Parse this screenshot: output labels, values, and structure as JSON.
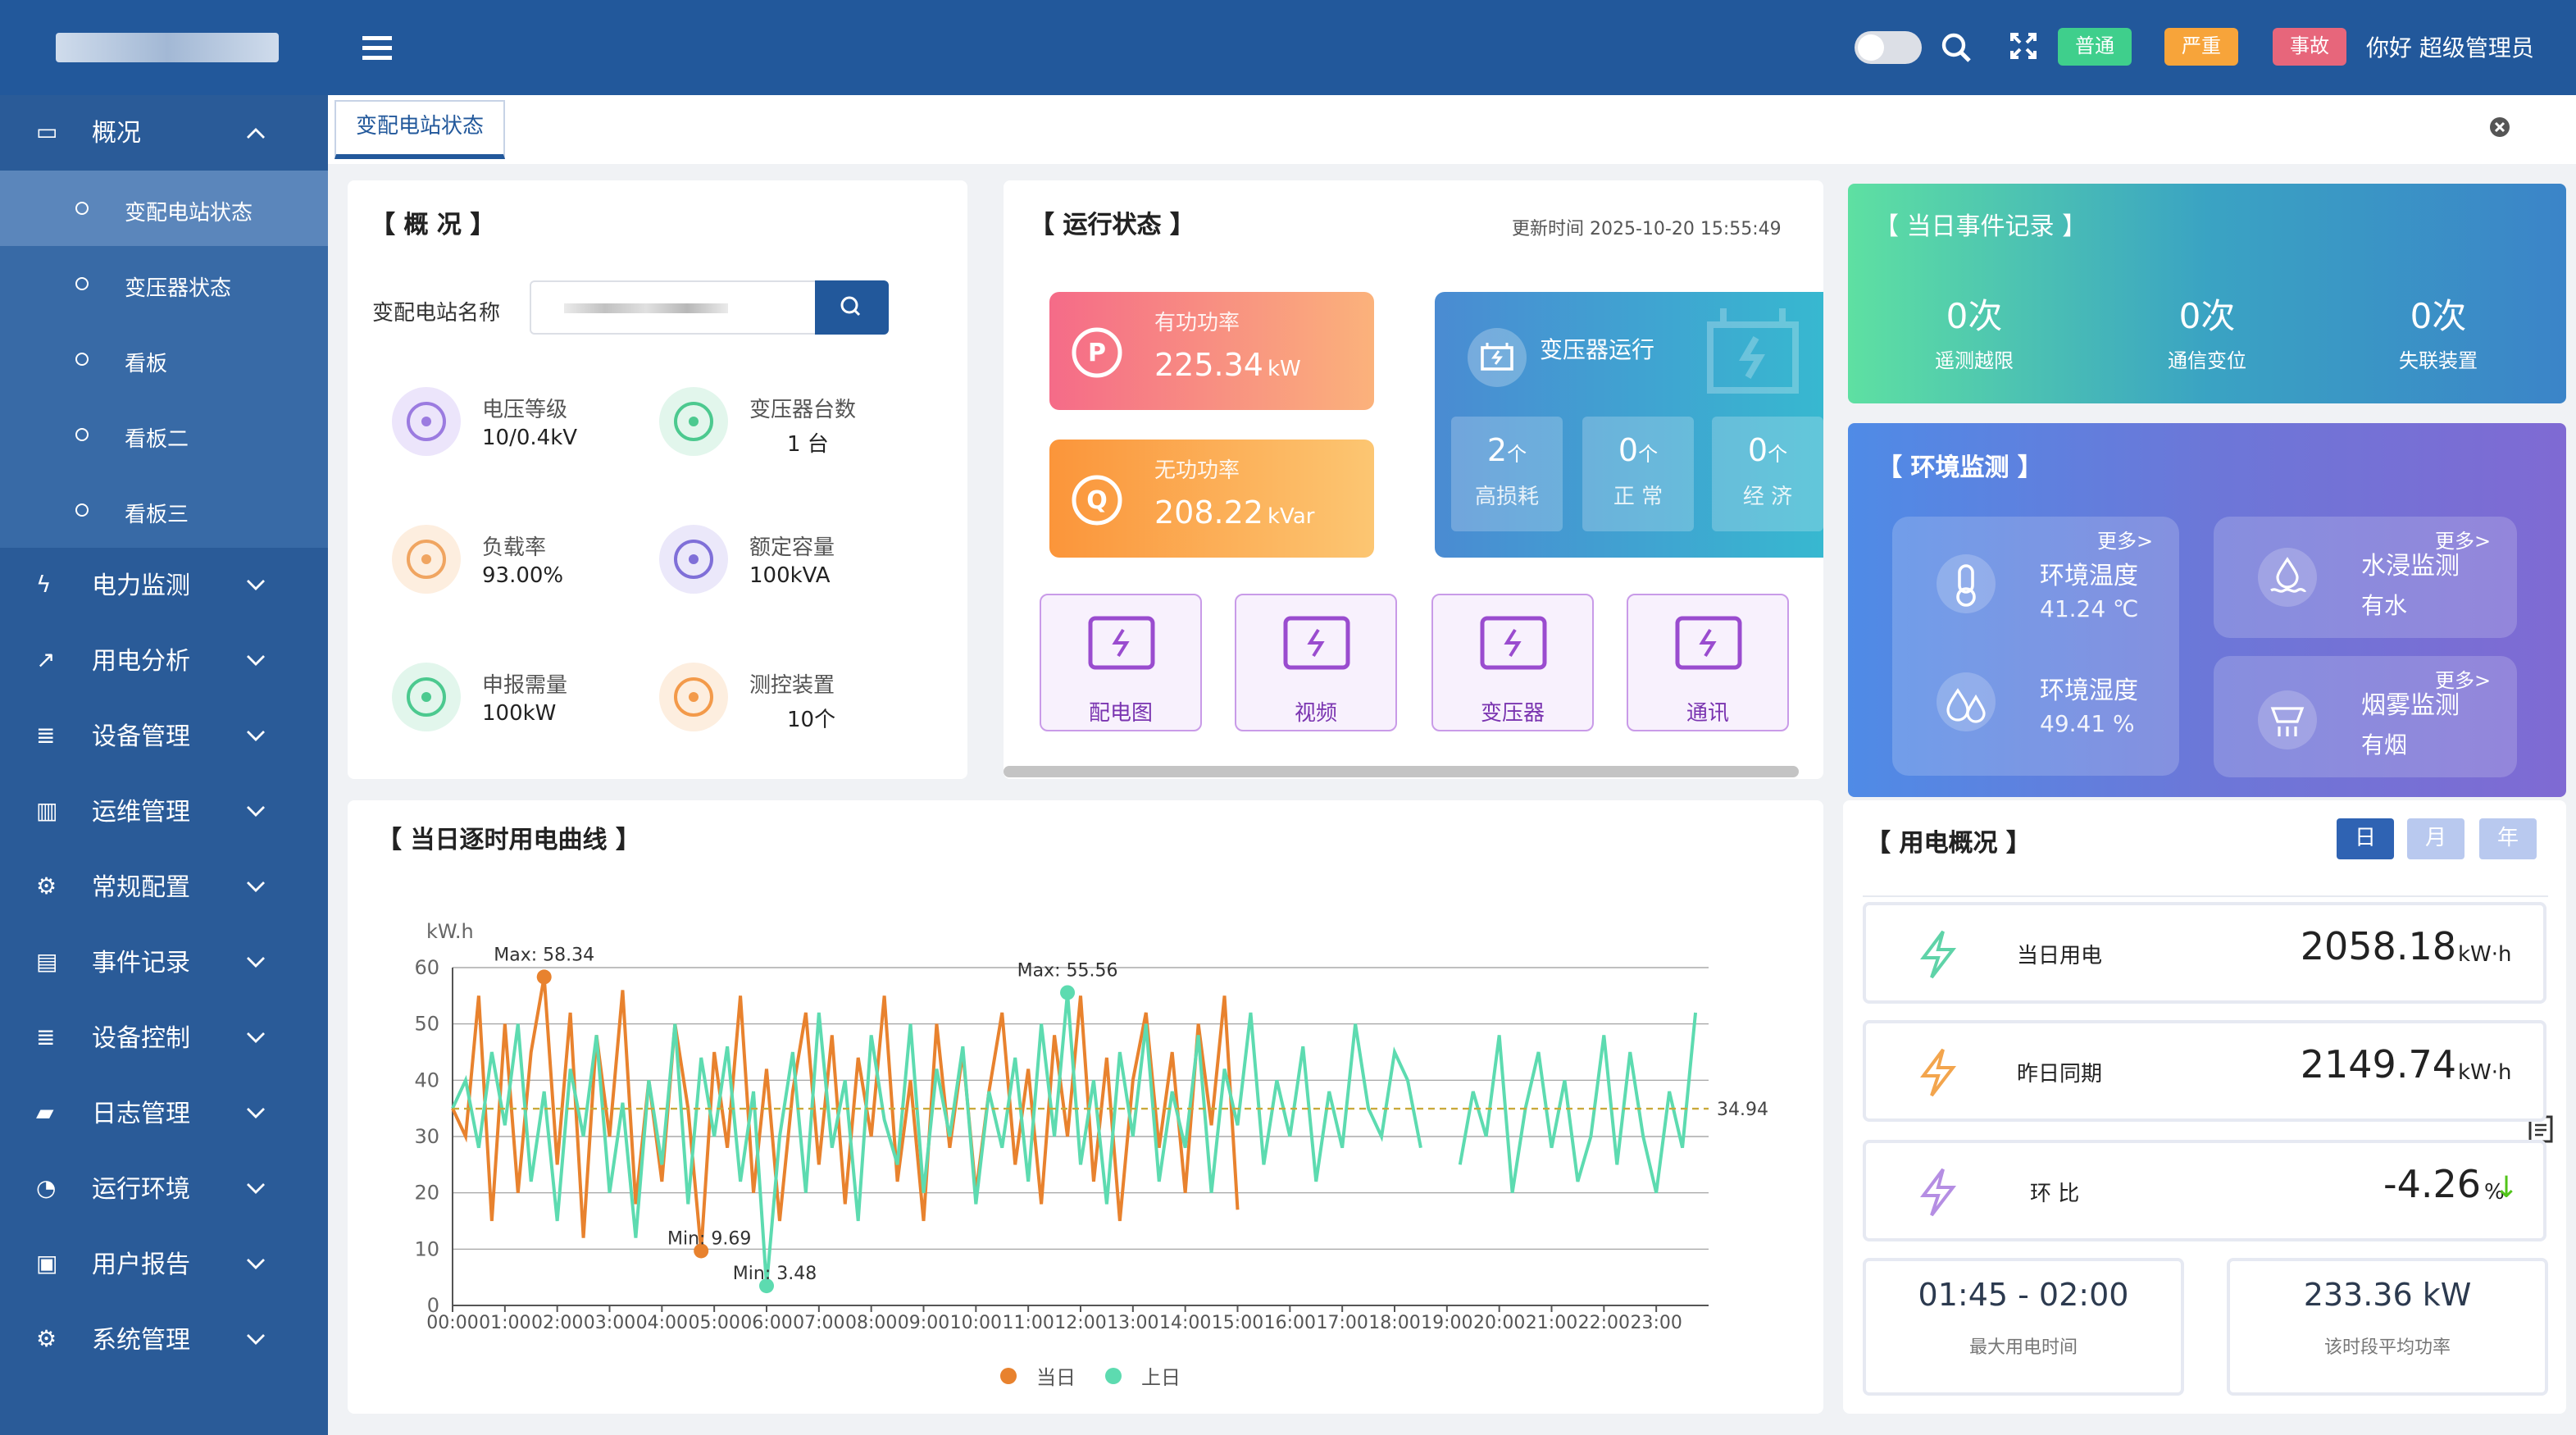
{
  "header": {
    "levels": [
      "普通",
      "严重",
      "事故"
    ],
    "greeting": "你好 超级管理员"
  },
  "sidebar": {
    "menu": [
      {
        "label": "概况",
        "children": [
          "变配电站状态",
          "变压器状态",
          "看板",
          "看板二",
          "看板三"
        ]
      },
      {
        "label": "电力监测"
      },
      {
        "label": "用电分析"
      },
      {
        "label": "设备管理"
      },
      {
        "label": "运维管理"
      },
      {
        "label": "常规配置"
      },
      {
        "label": "事件记录"
      },
      {
        "label": "设备控制"
      },
      {
        "label": "日志管理"
      },
      {
        "label": "运行环境"
      },
      {
        "label": "用户报告"
      },
      {
        "label": "系统管理"
      }
    ]
  },
  "tab": "变配电站状态",
  "overview": {
    "title": "【 概 况 】",
    "search_label": "变配电站名称",
    "items": [
      {
        "label": "电压等级",
        "value": "10/0.4kV"
      },
      {
        "label": "变压器台数",
        "value": "1 台"
      },
      {
        "label": "负载率",
        "value": "93.00%"
      },
      {
        "label": "额定容量",
        "value": "100kVA"
      },
      {
        "label": "申报需量",
        "value": "100kW"
      },
      {
        "label": "测控装置",
        "value": "10个"
      }
    ]
  },
  "run_status": {
    "title": "【 运行状态 】",
    "update_time": "更新时间 2025-10-20 15:55:49",
    "active_power": {
      "label": "有功功率",
      "value": "225.34",
      "unit": "kW"
    },
    "reactive_power": {
      "label": "无功功率",
      "value": "208.22",
      "unit": "kVar"
    },
    "transformer": {
      "title": "变压器运行",
      "stats": [
        {
          "value": "2",
          "unit": "个",
          "label": "高损耗"
        },
        {
          "value": "0",
          "unit": "个",
          "label": "正 常"
        },
        {
          "value": "0",
          "unit": "个",
          "label": "经 济"
        }
      ]
    },
    "buttons": [
      "配电图",
      "视频",
      "变压器",
      "通讯"
    ]
  },
  "events": {
    "title": "【 当日事件记录 】",
    "items": [
      {
        "value": "0次",
        "label": "遥测越限"
      },
      {
        "value": "0次",
        "label": "通信变位"
      },
      {
        "value": "0次",
        "label": "失联装置"
      }
    ]
  },
  "environment": {
    "title": "【 环境监测 】",
    "more": "更多>",
    "temperature": {
      "label": "环境温度",
      "value": "41.24 ℃"
    },
    "humidity": {
      "label": "环境湿度",
      "value": "49.41 %"
    },
    "flood": {
      "label": "水浸监测",
      "value": "有水"
    },
    "smoke": {
      "label": "烟雾监测",
      "value": "有烟"
    }
  },
  "chart_data": {
    "type": "line",
    "title": "【 当日逐时用电曲线 】",
    "y_label": "kW.h",
    "x": [
      "00:00",
      null,
      null,
      null,
      "01:00",
      null,
      null,
      null,
      "02:00",
      null,
      null,
      null,
      "03:00",
      null,
      null,
      null,
      "04:00",
      null,
      null,
      null,
      "05:00",
      null,
      null,
      null,
      "06:00",
      null,
      null,
      null,
      "07:00",
      null,
      null,
      null,
      "08:00",
      null,
      null,
      null,
      "09:00",
      null,
      null,
      null,
      "10:00",
      null,
      null,
      null,
      "11:00",
      null,
      null,
      null,
      "12:00",
      null,
      null,
      null,
      "13:00",
      null,
      null,
      null,
      "14:00",
      null,
      null,
      null,
      "15:00",
      null,
      null,
      null,
      "16:00",
      null,
      null,
      null,
      "17:00",
      null,
      null,
      null,
      "18:00",
      null,
      null,
      null,
      "19:00",
      null,
      null,
      null,
      "20:00",
      null,
      null,
      null,
      "21:00",
      null,
      null,
      null,
      "22:00",
      null,
      null,
      null,
      "23:00",
      null,
      null,
      null
    ],
    "series": [
      {
        "name": "当日",
        "color": "#e8822e",
        "values": [
          35,
          30,
          55,
          15,
          50,
          20,
          45,
          58.34,
          25,
          52,
          12,
          48,
          30,
          56,
          18,
          40,
          22,
          50,
          35,
          9.69,
          45,
          28,
          55,
          20,
          42,
          15,
          38,
          52,
          25,
          48,
          18,
          44,
          30,
          55,
          22,
          40,
          15,
          50,
          28,
          45,
          20,
          38,
          52,
          25,
          42,
          18,
          48,
          30,
          55,
          22,
          44,
          15,
          40,
          52,
          28,
          45,
          20,
          50,
          32,
          55,
          17,
          null,
          null,
          null,
          null,
          null,
          null,
          null,
          null,
          null,
          null,
          null,
          null,
          null,
          null,
          null,
          null,
          null,
          null,
          null,
          null,
          null,
          null,
          null,
          null,
          null,
          null,
          null,
          null,
          null,
          null,
          null,
          null,
          null,
          null,
          null
        ]
      },
      {
        "name": "上日",
        "color": "#5ddbb0",
        "values": [
          35,
          40,
          28,
          45,
          32,
          50,
          22,
          38,
          15,
          42,
          30,
          48,
          20,
          36,
          12,
          40,
          25,
          50,
          18,
          44,
          30,
          46,
          22,
          38,
          3.48,
          30,
          45,
          20,
          52,
          28,
          40,
          15,
          48,
          33,
          25,
          50,
          20,
          42,
          30,
          46,
          18,
          38,
          28,
          44,
          22,
          50,
          30,
          55.56,
          25,
          40,
          18,
          45,
          30,
          50,
          22,
          38,
          28,
          48,
          20,
          42,
          32,
          52,
          25,
          40,
          30,
          46,
          22,
          38,
          28,
          50,
          35,
          30,
          45,
          40,
          28,
          null,
          null,
          25,
          38,
          30,
          48,
          20,
          35,
          45,
          28,
          40,
          22,
          30,
          48,
          25,
          45,
          30,
          20,
          38,
          28,
          52
        ]
      }
    ],
    "annotations": [
      "Max: 58.34",
      "Min: 9.69",
      "Max: 55.56",
      "Min: 3.48"
    ],
    "average": 34.94,
    "ylim": [
      0,
      60
    ],
    "yticks": [
      0,
      10,
      20,
      30,
      40,
      50,
      60
    ],
    "grid": true,
    "legend": "bottom"
  },
  "usage": {
    "title": "【 用电概况 】",
    "periods": [
      "日",
      "月",
      "年"
    ],
    "rows": [
      {
        "label": "当日用电",
        "value": "2058.18",
        "unit": "kW·h"
      },
      {
        "label": "昨日同期",
        "value": "2149.74",
        "unit": "kW·h"
      },
      {
        "label": "环 比",
        "value": "-4.26",
        "unit": "%"
      }
    ],
    "peak": {
      "value": "01:45 - 02:00",
      "label": "最大用电时间"
    },
    "avg": {
      "value": "233.36 kW",
      "label": "该时段平均功率"
    }
  }
}
